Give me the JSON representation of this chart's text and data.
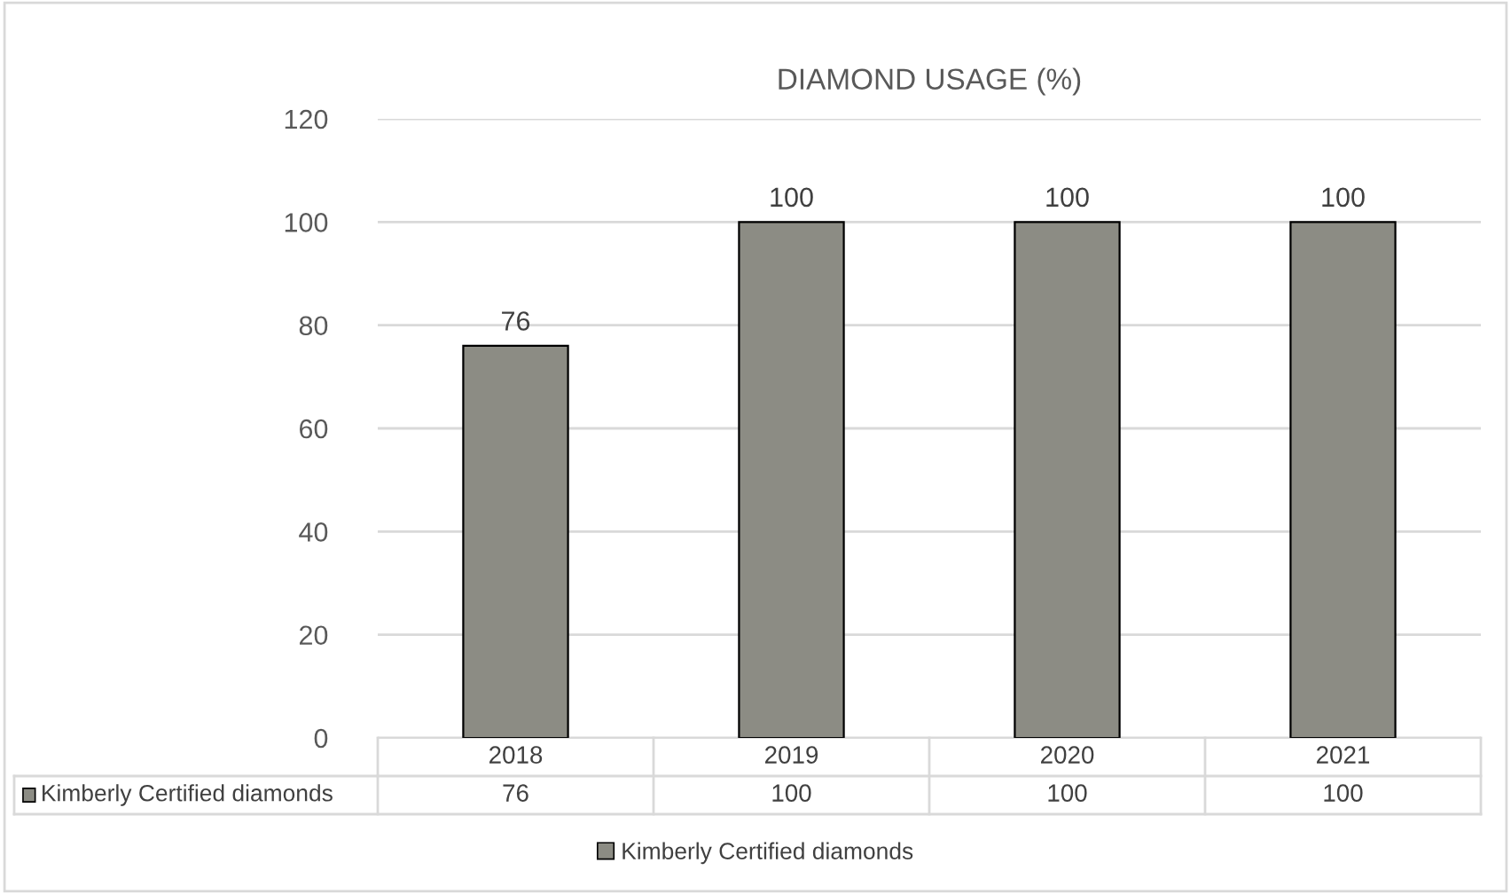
{
  "chart_data": {
    "type": "bar",
    "title": "DIAMOND USAGE (%)",
    "categories": [
      "2018",
      "2019",
      "2020",
      "2021"
    ],
    "series": [
      {
        "name": "Kimberly Certified diamonds",
        "color": "#8c8c84",
        "values": [
          76,
          100,
          100,
          100
        ]
      }
    ],
    "annotations": [
      {
        "text": "76",
        "x": "2018",
        "y": 76
      },
      {
        "text": "100",
        "x": "2019",
        "y": 100
      },
      {
        "text": "100",
        "x": "2020",
        "y": 100
      },
      {
        "text": "100",
        "x": "2021",
        "y": 100
      }
    ],
    "ylim": [
      0,
      120
    ],
    "yticks": [
      0,
      20,
      40,
      60,
      80,
      100,
      120
    ],
    "grid": "y",
    "legend": "bottom",
    "data_labels": true
  }
}
